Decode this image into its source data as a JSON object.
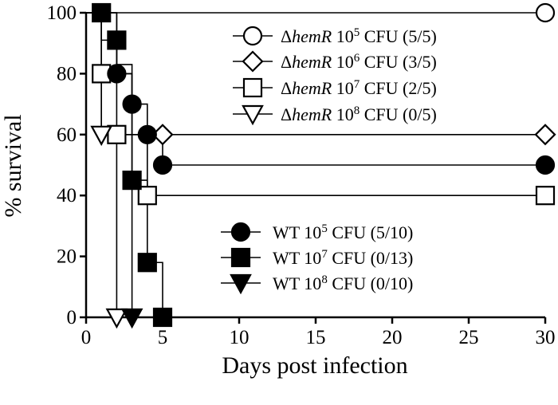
{
  "chart_data": {
    "type": "line",
    "subtype": "kaplan-meier-survival",
    "xlabel": "Days post infection",
    "ylabel": "% survival",
    "xlim": [
      0,
      30
    ],
    "ylim": [
      0,
      100
    ],
    "x_axis_break": [
      5,
      29
    ],
    "x_ticks": [
      0,
      5,
      10,
      15,
      20,
      25,
      30
    ],
    "y_ticks": [
      0,
      20,
      40,
      60,
      80,
      100
    ],
    "grid": false,
    "legend_position": [
      "top-right",
      "center-right"
    ],
    "series": [
      {
        "name_parts": [
          "Δ",
          "hemR",
          " 10",
          "5",
          " CFU (5/5)"
        ],
        "marker": "circle-open",
        "steps": [
          [
            0,
            100
          ],
          [
            30,
            100
          ]
        ],
        "points": [
          [
            30,
            100
          ]
        ]
      },
      {
        "name_parts": [
          "Δ",
          "hemR",
          " 10",
          "6",
          " CFU (3/5)"
        ],
        "marker": "diamond-open",
        "steps": [
          [
            0,
            100
          ],
          [
            2,
            100
          ],
          [
            2,
            80
          ],
          [
            3,
            80
          ],
          [
            3,
            60
          ],
          [
            5,
            60
          ],
          [
            30,
            60
          ]
        ],
        "points": [
          [
            5,
            60
          ],
          [
            30,
            60
          ]
        ]
      },
      {
        "name_parts": [
          "Δ",
          "hemR",
          " 10",
          "7",
          " CFU (2/5)"
        ],
        "marker": "square-open",
        "steps": [
          [
            0,
            100
          ],
          [
            1,
            100
          ],
          [
            1,
            80
          ],
          [
            2,
            80
          ],
          [
            2,
            60
          ],
          [
            4,
            60
          ],
          [
            4,
            40
          ],
          [
            30,
            40
          ]
        ],
        "points": [
          [
            1,
            80
          ],
          [
            2,
            60
          ],
          [
            4,
            40
          ],
          [
            30,
            40
          ]
        ]
      },
      {
        "name_parts": [
          "Δ",
          "hemR",
          " 10",
          "8",
          " CFU (0/5)"
        ],
        "marker": "triangle-down-open",
        "steps": [
          [
            0,
            100
          ],
          [
            1,
            100
          ],
          [
            1,
            60
          ],
          [
            2,
            60
          ],
          [
            2,
            0
          ]
        ],
        "points": [
          [
            1,
            60
          ],
          [
            2,
            0
          ]
        ]
      },
      {
        "name_parts": [
          "WT 10",
          "5",
          " CFU (5/10)"
        ],
        "marker": "circle-filled",
        "steps": [
          [
            0,
            100
          ],
          [
            2,
            100
          ],
          [
            2,
            80
          ],
          [
            3,
            80
          ],
          [
            3,
            70
          ],
          [
            4,
            70
          ],
          [
            4,
            60
          ],
          [
            5,
            60
          ],
          [
            5,
            50
          ],
          [
            30,
            50
          ]
        ],
        "points": [
          [
            2,
            80
          ],
          [
            3,
            70
          ],
          [
            4,
            60
          ],
          [
            5,
            50
          ],
          [
            30,
            50
          ]
        ]
      },
      {
        "name_parts": [
          "WT 10",
          "7",
          " CFU (0/13)"
        ],
        "marker": "square-filled",
        "steps": [
          [
            0,
            100
          ],
          [
            1,
            100
          ],
          [
            1,
            91
          ],
          [
            2,
            91
          ],
          [
            2,
            83
          ],
          [
            3,
            83
          ],
          [
            3,
            45
          ],
          [
            4,
            45
          ],
          [
            4,
            18
          ],
          [
            5,
            18
          ],
          [
            5,
            0
          ]
        ],
        "points": [
          [
            1,
            100
          ],
          [
            2,
            91
          ],
          [
            3,
            45
          ],
          [
            4,
            18
          ],
          [
            5,
            0
          ]
        ]
      },
      {
        "name_parts": [
          "WT 10",
          "8",
          " CFU (0/10)"
        ],
        "marker": "triangle-down-filled",
        "steps": [
          [
            0,
            100
          ],
          [
            1,
            100
          ],
          [
            1,
            60
          ],
          [
            3,
            60
          ],
          [
            3,
            0
          ]
        ],
        "points": [
          [
            3,
            0
          ]
        ]
      }
    ],
    "legend_groups": [
      [
        0,
        1,
        2,
        3
      ],
      [
        4,
        5,
        6
      ]
    ]
  }
}
